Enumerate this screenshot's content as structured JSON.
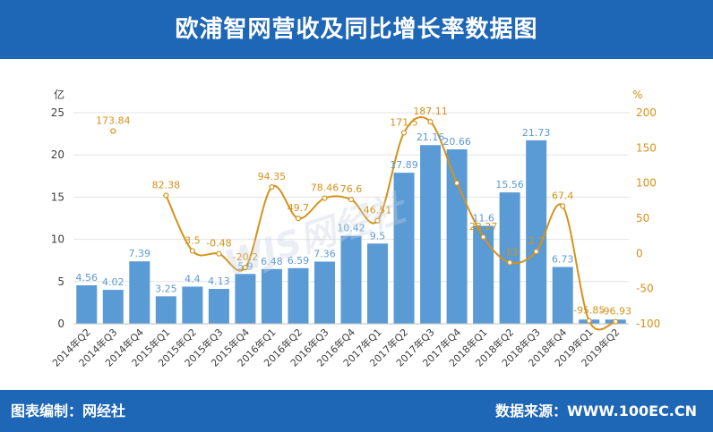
{
  "header": {
    "title": "欧浦智网营收及同比增长率数据图"
  },
  "footer": {
    "left": "图表编制：网经社",
    "right": "数据来源：WWW.100EC.CN"
  },
  "watermark": "WJS网经社",
  "chart_data": {
    "type": "bar",
    "categories": [
      "2014年Q2",
      "2014年Q3",
      "2014年Q4",
      "2015年Q1",
      "2015年Q2",
      "2015年Q3",
      "2015年Q4",
      "2016年Q1",
      "2016年Q2",
      "2016年Q3",
      "2016年Q4",
      "2017年Q1",
      "2017年Q2",
      "2017年Q3",
      "2017年Q4",
      "2018年Q1",
      "2018年Q2",
      "2018年Q3",
      "2018年Q4",
      "2019年Q1",
      "2019年Q2"
    ],
    "series": [
      {
        "type": "bar",
        "axis": "left",
        "color": "#5b9bd5",
        "values": [
          4.56,
          4.02,
          7.39,
          3.25,
          4.4,
          4.13,
          5.9,
          6.48,
          6.59,
          7.36,
          10.42,
          9.5,
          17.89,
          21.16,
          20.66,
          11.6,
          15.56,
          21.73,
          6.73,
          0.5,
          0.5
        ],
        "labels": [
          "4.56",
          "4.02",
          "7.39",
          "3.25",
          "4.4",
          "4.13",
          "5.9",
          "6.48",
          "6.59",
          "7.36",
          "10.42",
          "9.5",
          "17.89",
          "21.16",
          "20.66",
          "11.6",
          "15.56",
          "21.73",
          "6.73",
          "",
          ""
        ]
      },
      {
        "type": "line",
        "axis": "right",
        "color": "#d4921a",
        "values": [
          null,
          173.84,
          null,
          82.38,
          3.5,
          -0.48,
          -20.2,
          94.35,
          49.7,
          78.46,
          76.6,
          46.51,
          171.5,
          187.11,
          100,
          23.27,
          -13,
          2.7,
          67.4,
          -95.85,
          -96.93
        ],
        "labels": [
          "",
          "173.84",
          "",
          "82.38",
          "3.5",
          "-0.48",
          "-20.2",
          "94.35",
          "49.7",
          "78.46",
          "76.6",
          "46.51",
          "171.5",
          "187.11",
          "",
          "23.27",
          "-13",
          "2.7",
          "67.4",
          "-95.85",
          "-96.93"
        ]
      }
    ],
    "left_axis": {
      "unit": "亿",
      "min": 0,
      "max": 25,
      "ticks": [
        0,
        5,
        10,
        15,
        20,
        25
      ]
    },
    "right_axis": {
      "unit": "%",
      "min": -100,
      "max": 200,
      "ticks": [
        -100,
        -50,
        0,
        50,
        100,
        150,
        200
      ]
    },
    "grid": true
  }
}
